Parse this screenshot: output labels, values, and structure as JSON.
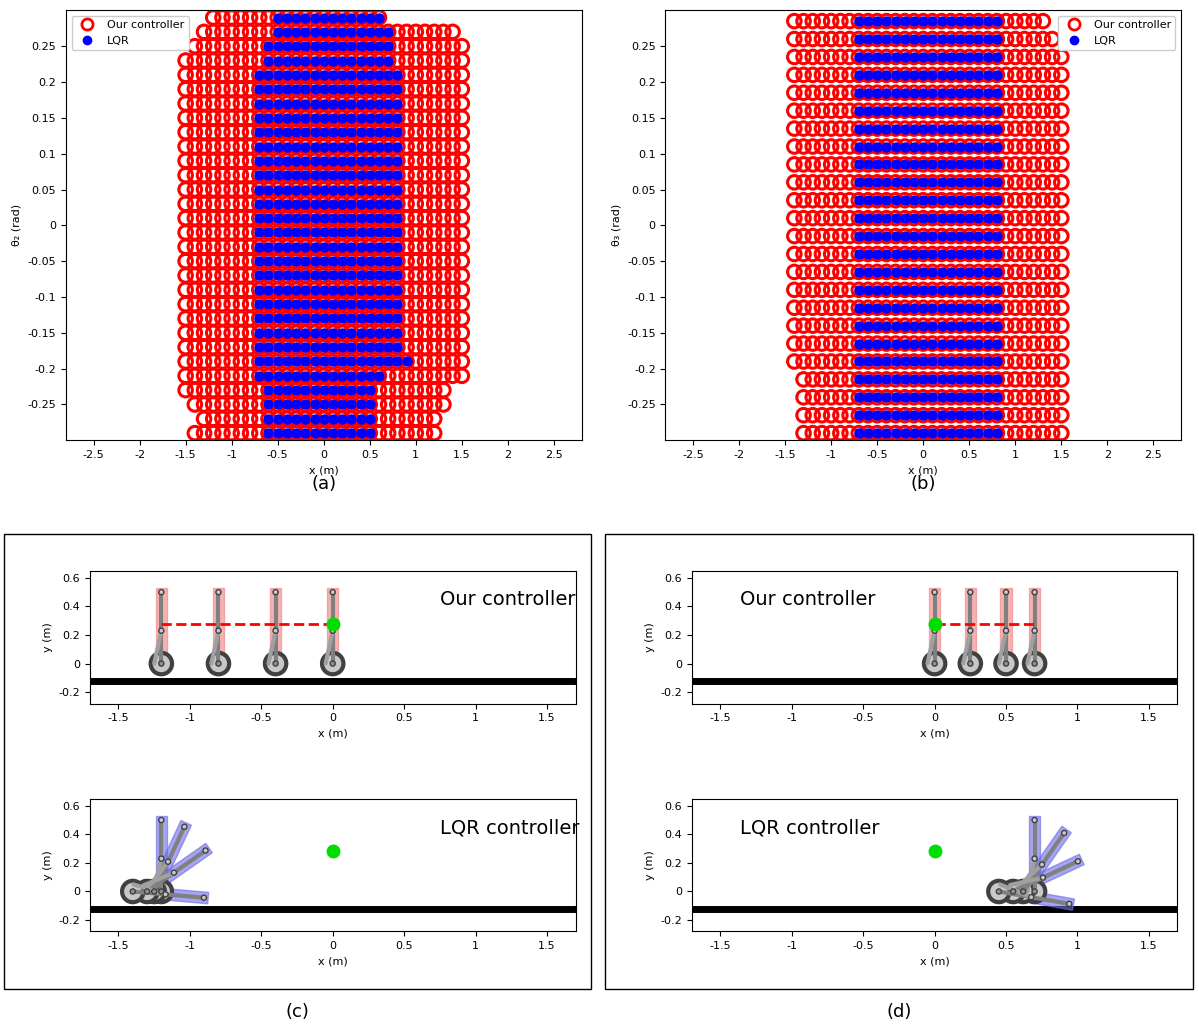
{
  "chart_data": [
    {
      "type": "scatter",
      "label": "(a)",
      "xlabel": "x (m)",
      "ylabel": "θ₂ (rad)",
      "xlim": [
        -2.8,
        2.8
      ],
      "ylim": [
        -0.3,
        0.3
      ],
      "xticks": [
        -2.5,
        -2,
        -1.5,
        -1,
        -0.5,
        0,
        0.5,
        1,
        1.5,
        2,
        2.5
      ],
      "yticks": [
        -0.25,
        -0.2,
        -0.15,
        -0.1,
        -0.05,
        0,
        0.05,
        0.1,
        0.15,
        0.2,
        0.25
      ],
      "legend": "upper left",
      "x_step": 0.1,
      "y_step": 0.02,
      "series": [
        {
          "name": "Our controller",
          "color": "#ff0000",
          "marker": "open_circle",
          "rows": [
            {
              "y_range": [
                0.29,
                0.29
              ],
              "x_range": [
                -1.2,
                0.6
              ]
            },
            {
              "y_range": [
                0.27,
                0.27
              ],
              "x_range": [
                -1.3,
                1.4
              ]
            },
            {
              "y_range": [
                0.25,
                0.25
              ],
              "x_range": [
                -1.4,
                1.5
              ]
            },
            {
              "y_range": [
                -0.21,
                0.23
              ],
              "x_range": [
                -1.5,
                1.5
              ]
            },
            {
              "y_range": [
                -0.23,
                -0.23
              ],
              "x_range": [
                -1.5,
                1.3
              ]
            },
            {
              "y_range": [
                -0.25,
                -0.25
              ],
              "x_range": [
                -1.4,
                1.3
              ]
            },
            {
              "y_range": [
                -0.27,
                -0.27
              ],
              "x_range": [
                -1.3,
                1.2
              ]
            },
            {
              "y_range": [
                -0.29,
                -0.29
              ],
              "x_range": [
                -1.4,
                1.2
              ]
            }
          ]
        },
        {
          "name": "LQR",
          "color": "#0000ff",
          "marker": "filled_circle",
          "rows": [
            {
              "y_range": [
                0.29,
                0.29
              ],
              "x_range": [
                -0.5,
                0.6
              ]
            },
            {
              "y_range": [
                0.27,
                0.27
              ],
              "x_range": [
                -0.5,
                0.7
              ]
            },
            {
              "y_range": [
                0.23,
                0.25
              ],
              "x_range": [
                -0.6,
                0.7
              ]
            },
            {
              "y_range": [
                -0.17,
                0.21
              ],
              "x_range": [
                -0.7,
                0.8
              ]
            },
            {
              "y_range": [
                -0.19,
                -0.19
              ],
              "x_range": [
                -0.7,
                0.9
              ]
            },
            {
              "y_range": [
                -0.21,
                -0.21
              ],
              "x_range": [
                -0.7,
                0.6
              ]
            },
            {
              "y_range": [
                -0.29,
                -0.23
              ],
              "x_range": [
                -0.6,
                0.5
              ]
            }
          ]
        }
      ]
    },
    {
      "type": "scatter",
      "label": "(b)",
      "xlabel": "x (m)",
      "ylabel": "θ₃ (rad)",
      "xlim": [
        -2.8,
        2.8
      ],
      "ylim": [
        -0.3,
        0.3
      ],
      "xticks": [
        -2.5,
        -2,
        -1.5,
        -1,
        -0.5,
        0,
        0.5,
        1,
        1.5,
        2,
        2.5
      ],
      "yticks": [
        -0.25,
        -0.2,
        -0.15,
        -0.1,
        -0.05,
        0,
        0.05,
        0.1,
        0.15,
        0.2,
        0.25
      ],
      "legend": "upper right",
      "x_step": 0.1,
      "y_step": 0.025,
      "series": [
        {
          "name": "Our controller",
          "color": "#ff0000",
          "marker": "open_circle",
          "rows": [
            {
              "y_range": [
                0.285,
                0.285
              ],
              "x_range": [
                -1.4,
                1.3
              ]
            },
            {
              "y_range": [
                0.26,
                0.26
              ],
              "x_range": [
                -1.4,
                1.4
              ]
            },
            {
              "y_range": [
                -0.19,
                0.235
              ],
              "x_range": [
                -1.4,
                1.5
              ]
            },
            {
              "y_range": [
                -0.29,
                -0.215
              ],
              "x_range": [
                -1.3,
                1.5
              ]
            }
          ]
        },
        {
          "name": "LQR",
          "color": "#0000ff",
          "marker": "filled_circle",
          "rows": [
            {
              "y_range": [
                -0.29,
                0.285
              ],
              "x_range": [
                -0.7,
                0.8
              ]
            }
          ]
        }
      ]
    }
  ],
  "diagrams": [
    {
      "label": "(c)",
      "xlabel": "x (m)",
      "ylabel": "y (m)",
      "xlim": [
        -1.7,
        1.7
      ],
      "ylim": [
        -0.28,
        0.65
      ],
      "xticks": [
        -1.5,
        -1,
        -0.5,
        0,
        0.5,
        1,
        1.5
      ],
      "yticks": [
        -0.2,
        0,
        0.2,
        0.4,
        0.6
      ],
      "target": [
        0,
        0.28
      ],
      "ground_y": -0.12,
      "scenes": [
        {
          "title": "Our controller",
          "color": "#f08080",
          "path_x": [
            -1.2,
            0
          ],
          "robots": [
            {
              "x": -1.2,
              "tilt": 0
            },
            {
              "x": -0.8,
              "tilt": 0
            },
            {
              "x": -0.4,
              "tilt": 0
            },
            {
              "x": 0,
              "tilt": 0
            }
          ]
        },
        {
          "title": "LQR controller",
          "color": "#6a6ae6",
          "robots": [
            {
              "x": -1.2,
              "tilt": 0
            },
            {
              "x": -1.25,
              "tilt": 25
            },
            {
              "x": -1.3,
              "tilt": 55
            },
            {
              "x": -1.4,
              "tilt": 95
            }
          ]
        }
      ]
    },
    {
      "label": "(d)",
      "xlabel": "x (m)",
      "ylabel": "y (m)",
      "xlim": [
        -1.7,
        1.7
      ],
      "ylim": [
        -0.28,
        0.65
      ],
      "xticks": [
        -1.5,
        -1,
        -0.5,
        0,
        0.5,
        1,
        1.5
      ],
      "yticks": [
        -0.2,
        0,
        0.2,
        0.4,
        0.6
      ],
      "target": [
        0,
        0.28
      ],
      "ground_y": -0.12,
      "scenes": [
        {
          "title": "Our controller",
          "color": "#f08080",
          "path_x": [
            0,
            0.7
          ],
          "robots": [
            {
              "x": 0,
              "tilt": 0
            },
            {
              "x": 0.25,
              "tilt": 0
            },
            {
              "x": 0.5,
              "tilt": 0
            },
            {
              "x": 0.7,
              "tilt": 0
            }
          ]
        },
        {
          "title": "LQR controller",
          "color": "#6a6ae6",
          "robots": [
            {
              "x": 0.7,
              "tilt": 0
            },
            {
              "x": 0.62,
              "tilt": 35
            },
            {
              "x": 0.55,
              "tilt": 65
            },
            {
              "x": 0.45,
              "tilt": 100
            }
          ]
        }
      ]
    }
  ]
}
